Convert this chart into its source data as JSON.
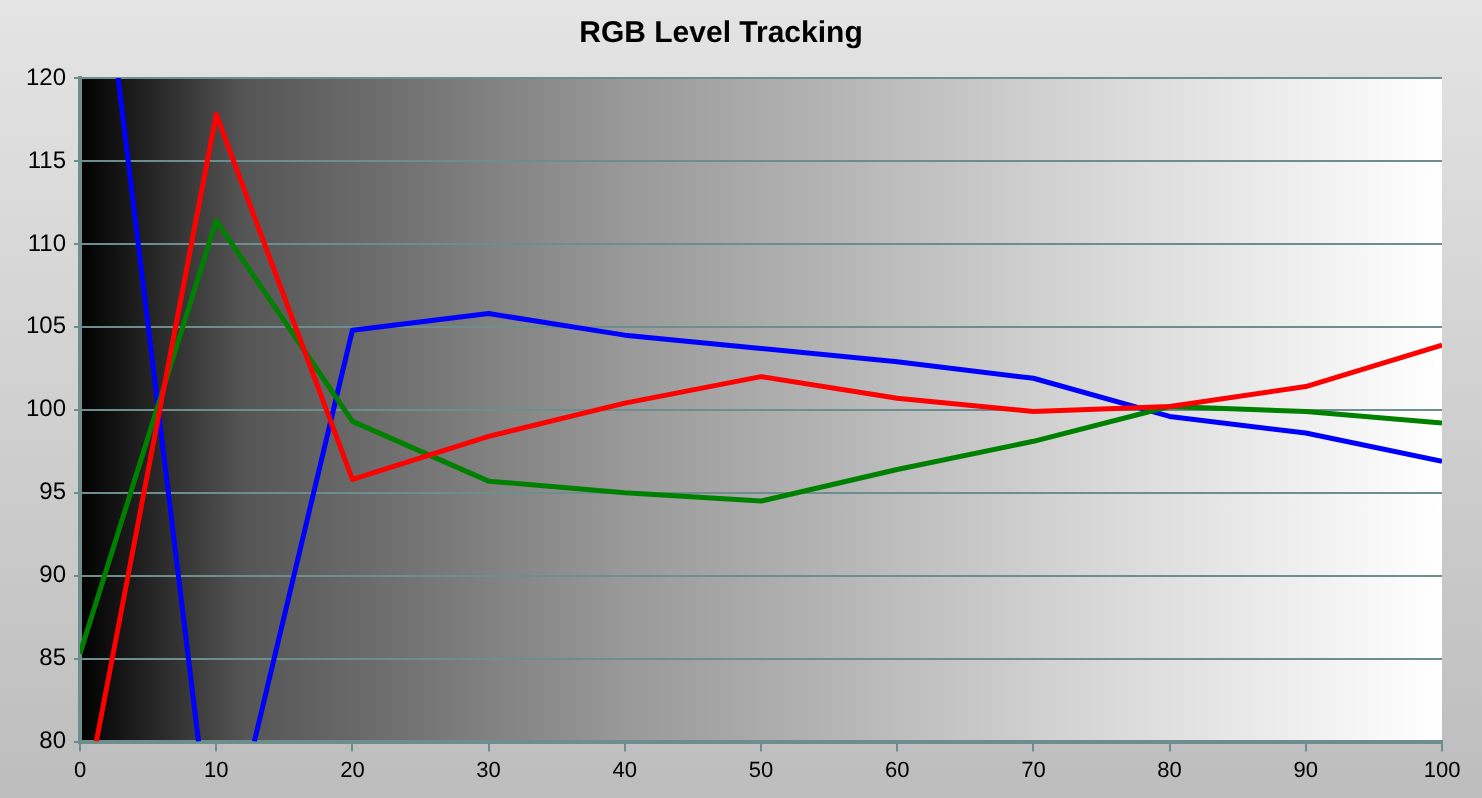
{
  "chart_data": {
    "type": "line",
    "title": "RGB Level Tracking",
    "xlim": [
      0,
      100
    ],
    "ylim": [
      80,
      120
    ],
    "xticks": [
      0,
      10,
      20,
      30,
      40,
      50,
      60,
      70,
      80,
      90,
      100
    ],
    "yticks": [
      80,
      85,
      90,
      95,
      100,
      105,
      110,
      115,
      120
    ],
    "grid": "y",
    "legend": false,
    "marker": "none",
    "series": [
      {
        "color": "#ff0000",
        "x": [
          1.2,
          10,
          20,
          30,
          40,
          50,
          60,
          70,
          80,
          90,
          100
        ],
        "values": [
          80,
          117.8,
          95.8,
          98.4,
          100.4,
          102.0,
          100.7,
          99.9,
          100.2,
          101.4,
          103.9
        ]
      },
      {
        "color": "#008000",
        "x": [
          0,
          10,
          20,
          30,
          40,
          50,
          60,
          70,
          80,
          90,
          100
        ],
        "values": [
          85.3,
          111.4,
          99.3,
          95.7,
          95.0,
          94.5,
          96.4,
          98.1,
          100.2,
          99.9,
          99.2
        ]
      },
      {
        "color": "#0000ff",
        "x": [
          2.8,
          8.7,
          10,
          12.8,
          20,
          30,
          40,
          50,
          60,
          70,
          80,
          90,
          100
        ],
        "values": [
          120,
          80,
          null,
          80,
          104.8,
          105.8,
          104.5,
          103.7,
          102.9,
          101.9,
          99.6,
          98.6,
          96.9
        ]
      }
    ]
  }
}
